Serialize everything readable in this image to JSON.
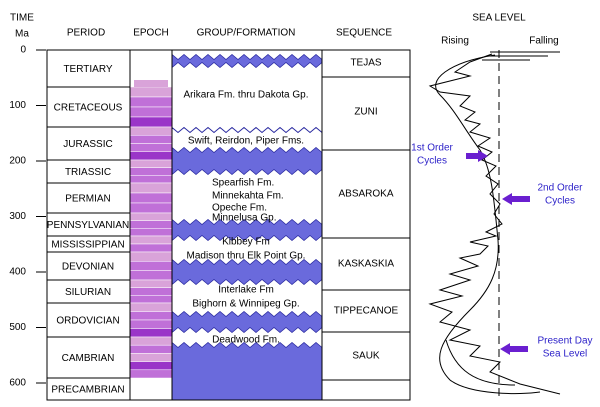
{
  "header": {
    "time": "TIME",
    "ma": "Ma",
    "period": "PERIOD",
    "epoch": "EPOCH",
    "formation": "GROUP/FORMATION",
    "sequence": "SEQUENCE",
    "sea_level": "SEA LEVEL",
    "rising": "Rising",
    "falling": "Falling"
  },
  "time_axis": {
    "ticks": [
      0,
      100,
      200,
      300,
      400,
      500,
      600
    ]
  },
  "periods": [
    "TERTIARY",
    "CRETACEOUS",
    "JURASSIC",
    "TRIASSIC",
    "PERMIAN",
    "PENNSYLVANIAN",
    "MISSISSIPPIAN",
    "DEVONIAN",
    "SILURIAN",
    "ORDOVICIAN",
    "CAMBRIAN",
    "PRECAMBRIAN"
  ],
  "formations": [
    "Arikara Fm. thru Dakota Gp.",
    "Swift, Reirdon, Piper Fms.",
    "Spearfish Fm.",
    "Minnekahta Fm.",
    "Opeche Fm.",
    "Minnelusa Gp.",
    "Kibbey Fm",
    "Madison thru Elk Point Gp.",
    "Interlake Fm",
    "Bighorn & Winnipeg Gp.",
    "Deadwood Fm."
  ],
  "sequences": [
    "TEJAS",
    "ZUNI",
    "ABSAROKA",
    "KASKASKIA",
    "TIPPECANOE",
    "SAUK"
  ],
  "annotations": [
    {
      "lines": [
        "1st Order",
        "Cycles"
      ]
    },
    {
      "lines": [
        "2nd Order",
        "Cycles"
      ]
    },
    {
      "lines": [
        "Present Day",
        "Sea Level"
      ]
    }
  ]
}
